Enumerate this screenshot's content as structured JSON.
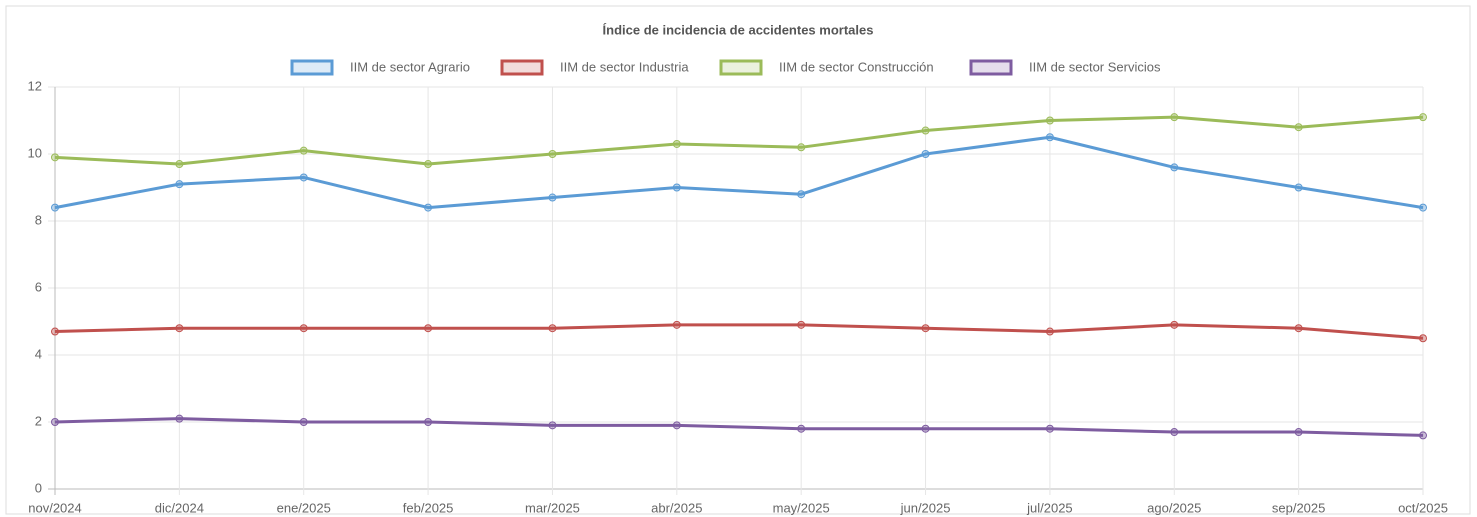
{
  "chart_data": {
    "type": "line",
    "title": "Índice de incidencia de accidentes mortales",
    "categories": [
      "nov/2024",
      "dic/2024",
      "ene/2025",
      "feb/2025",
      "mar/2025",
      "abr/2025",
      "may/2025",
      "jun/2025",
      "jul/2025",
      "ago/2025",
      "sep/2025",
      "oct/2025"
    ],
    "series": [
      {
        "name": "IIM de sector Agrario",
        "color": "#5b9bd5",
        "values": [
          8.4,
          9.1,
          9.3,
          8.4,
          8.7,
          9.0,
          8.8,
          10.0,
          10.5,
          9.6,
          9.0,
          8.4
        ]
      },
      {
        "name": "IIM de sector Industria",
        "color": "#c0504d",
        "values": [
          4.7,
          4.8,
          4.8,
          4.8,
          4.8,
          4.9,
          4.9,
          4.8,
          4.7,
          4.9,
          4.8,
          4.5
        ]
      },
      {
        "name": "IIM de sector Construcción",
        "color": "#9bbb59",
        "values": [
          9.9,
          9.7,
          10.1,
          9.7,
          10.0,
          10.3,
          10.2,
          10.7,
          11.0,
          11.1,
          10.8,
          11.1
        ]
      },
      {
        "name": "IIM de sector Servicios",
        "color": "#7e5ca0",
        "values": [
          2.0,
          2.1,
          2.0,
          2.0,
          1.9,
          1.9,
          1.8,
          1.8,
          1.8,
          1.7,
          1.7,
          1.6
        ]
      }
    ],
    "ylim": [
      0,
      12
    ],
    "yticks": [
      0,
      2,
      4,
      6,
      8,
      10,
      12
    ],
    "grid": true,
    "legend": "top"
  }
}
